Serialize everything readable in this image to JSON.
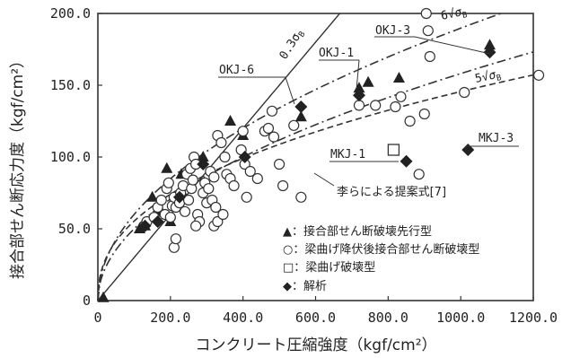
{
  "chart_data": {
    "type": "scatter",
    "xlabel": "コンクリート圧縮強度（kgf/cm²）",
    "ylabel": "接合部せん断応力度（kgf/cm²）",
    "xlim": [
      0,
      1200
    ],
    "ylim": [
      0,
      200
    ],
    "x_ticks": [
      "0",
      "200.0",
      "400.0",
      "600.0",
      "800.0",
      "1000.0",
      "1200.0"
    ],
    "y_ticks": [
      "0",
      "50.0",
      "100.0",
      "150.0",
      "200.0"
    ],
    "grid": false,
    "series": [
      {
        "name": "接合部せん断破壊先行型",
        "marker": "triangle",
        "points": [
          [
            15,
            2
          ],
          [
            115,
            50
          ],
          [
            130,
            52
          ],
          [
            150,
            72
          ],
          [
            175,
            62
          ],
          [
            190,
            92
          ],
          [
            200,
            55
          ],
          [
            230,
            88
          ],
          [
            240,
            72
          ],
          [
            290,
            100
          ],
          [
            365,
            125
          ],
          [
            400,
            115
          ],
          [
            560,
            128
          ],
          [
            720,
            148
          ],
          [
            745,
            152
          ],
          [
            830,
            155
          ],
          [
            1080,
            178
          ]
        ]
      },
      {
        "name": "梁曲げ降伏後接合部せん断破壊型",
        "marker": "circle",
        "points": [
          [
            135,
            55
          ],
          [
            155,
            58
          ],
          [
            165,
            65
          ],
          [
            175,
            70
          ],
          [
            185,
            60
          ],
          [
            190,
            78
          ],
          [
            195,
            82
          ],
          [
            200,
            58
          ],
          [
            205,
            66
          ],
          [
            210,
            72
          ],
          [
            215,
            65
          ],
          [
            225,
            68
          ],
          [
            228,
            75
          ],
          [
            235,
            80
          ],
          [
            240,
            62
          ],
          [
            245,
            88
          ],
          [
            250,
            70
          ],
          [
            255,
            92
          ],
          [
            258,
            78
          ],
          [
            262,
            84
          ],
          [
            265,
            100
          ],
          [
            270,
            95
          ],
          [
            275,
            60
          ],
          [
            280,
            55
          ],
          [
            290,
            75
          ],
          [
            295,
            82
          ],
          [
            300,
            68
          ],
          [
            305,
            78
          ],
          [
            310,
            90
          ],
          [
            315,
            70
          ],
          [
            320,
            86
          ],
          [
            325,
            65
          ],
          [
            330,
            115
          ],
          [
            340,
            110
          ],
          [
            350,
            100
          ],
          [
            355,
            88
          ],
          [
            365,
            85
          ],
          [
            375,
            80
          ],
          [
            395,
            105
          ],
          [
            400,
            118
          ],
          [
            405,
            95
          ],
          [
            410,
            72
          ],
          [
            420,
            90
          ],
          [
            440,
            85
          ],
          [
            460,
            118
          ],
          [
            470,
            120
          ],
          [
            480,
            132
          ],
          [
            485,
            114
          ],
          [
            500,
            95
          ],
          [
            510,
            80
          ],
          [
            540,
            122
          ],
          [
            560,
            72
          ],
          [
            720,
            136
          ],
          [
            765,
            136
          ],
          [
            820,
            135
          ],
          [
            835,
            142
          ],
          [
            860,
            125
          ],
          [
            885,
            88
          ],
          [
            900,
            130
          ],
          [
            905,
            200
          ],
          [
            910,
            188
          ],
          [
            915,
            170
          ],
          [
            1010,
            145
          ],
          [
            1215,
            157
          ],
          [
            210,
            37
          ],
          [
            215,
            43
          ],
          [
            320,
            52
          ],
          [
            330,
            55
          ],
          [
            345,
            60
          ],
          [
            270,
            52
          ]
        ]
      },
      {
        "name": "梁曲げ破壊型",
        "marker": "square",
        "points": [
          [
            815,
            105
          ]
        ]
      },
      {
        "name": "解析",
        "marker": "diamond",
        "points": [
          [
            130,
            52
          ],
          [
            165,
            55
          ],
          [
            225,
            72
          ],
          [
            290,
            95
          ],
          [
            405,
            100
          ],
          [
            560,
            135
          ],
          [
            720,
            143
          ],
          [
            850,
            97
          ],
          [
            1020,
            105
          ],
          [
            1080,
            173
          ]
        ]
      }
    ],
    "lines": [
      {
        "label": "0.3σ_B",
        "style": "solid",
        "kind": "linear",
        "k": 0.3
      },
      {
        "label": "6√σ_B",
        "style": "dashdot",
        "kind": "sqrt",
        "k": 6
      },
      {
        "label": "5√σ_B",
        "style": "dashdot",
        "kind": "sqrt",
        "k": 5
      },
      {
        "label": "李らによる提案式[7]",
        "style": "dashed",
        "kind": "power",
        "k": 8.0,
        "p": 0.42
      }
    ],
    "annotations": [
      "OKJ-6",
      "OKJ-1",
      "OKJ-3",
      "MKJ-1",
      "MKJ-3"
    ]
  },
  "legend_items": [
    "▲：接合部せん断破壊先行型",
    "○：梁曲げ降伏後接合部せん断破壊型",
    "□：梁曲げ破壊型",
    "◆：解析"
  ],
  "labels": {
    "line_03": "0.3σ",
    "line_03_sub": "B",
    "line_6": "6√",
    "line_6b": "σ",
    "line_6_sub": "B",
    "line_5": "5√",
    "line_5b": "σ",
    "line_5_sub": "B",
    "li_formula": "李らによる提案式[7]",
    "okj6": "OKJ-6",
    "okj1": "OKJ-1",
    "okj3": "OKJ-3",
    "mkj1": "MKJ-1",
    "mkj3": "MKJ-3"
  }
}
